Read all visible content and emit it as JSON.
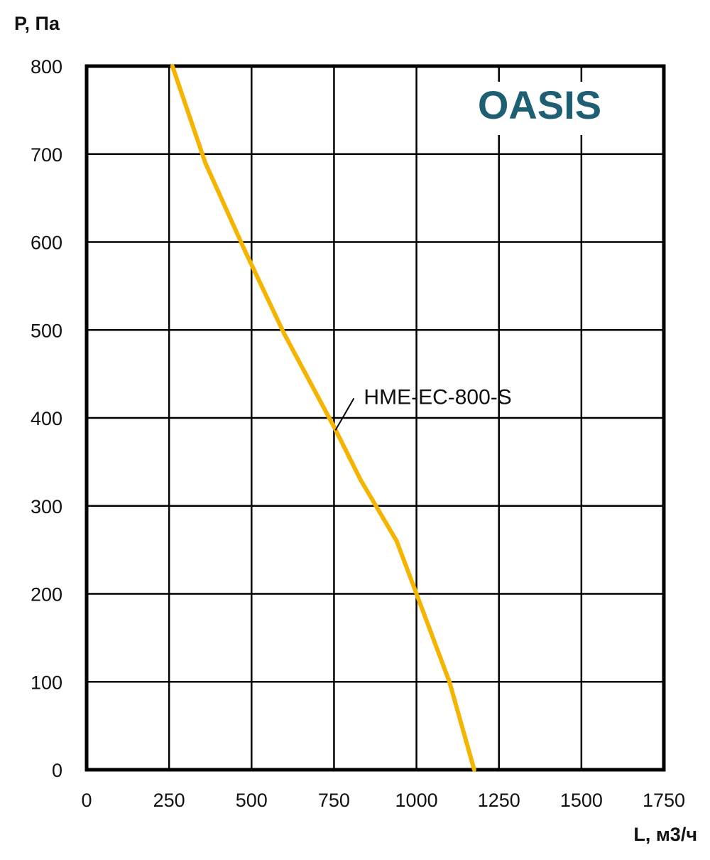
{
  "chart_data": {
    "type": "line",
    "title": "",
    "xlabel": "L, м3/ч",
    "ylabel": "P, Па",
    "xlim": [
      0,
      1750
    ],
    "ylim": [
      0,
      800
    ],
    "x_ticks": [
      "0",
      "250",
      "500",
      "750",
      "1000",
      "1250",
      "1500",
      "1750"
    ],
    "y_ticks": [
      "0",
      "100",
      "200",
      "300",
      "400",
      "500",
      "600",
      "700",
      "800"
    ],
    "grid": true,
    "logo": "OASIS",
    "series": [
      {
        "name": "HME-EC-800-S",
        "color": "#F5B400",
        "x": [
          260,
          360,
          480,
          600,
          750,
          830,
          940,
          1000,
          1100,
          1175
        ],
        "y": [
          800,
          690,
          590,
          495,
          390,
          330,
          260,
          200,
          100,
          0
        ]
      }
    ],
    "annotation": {
      "text": "HME-EC-800-S",
      "x": 750,
      "y": 390
    }
  },
  "colors": {
    "logo": "#1F5F73",
    "grid": "#000000",
    "frame": "#000000"
  }
}
